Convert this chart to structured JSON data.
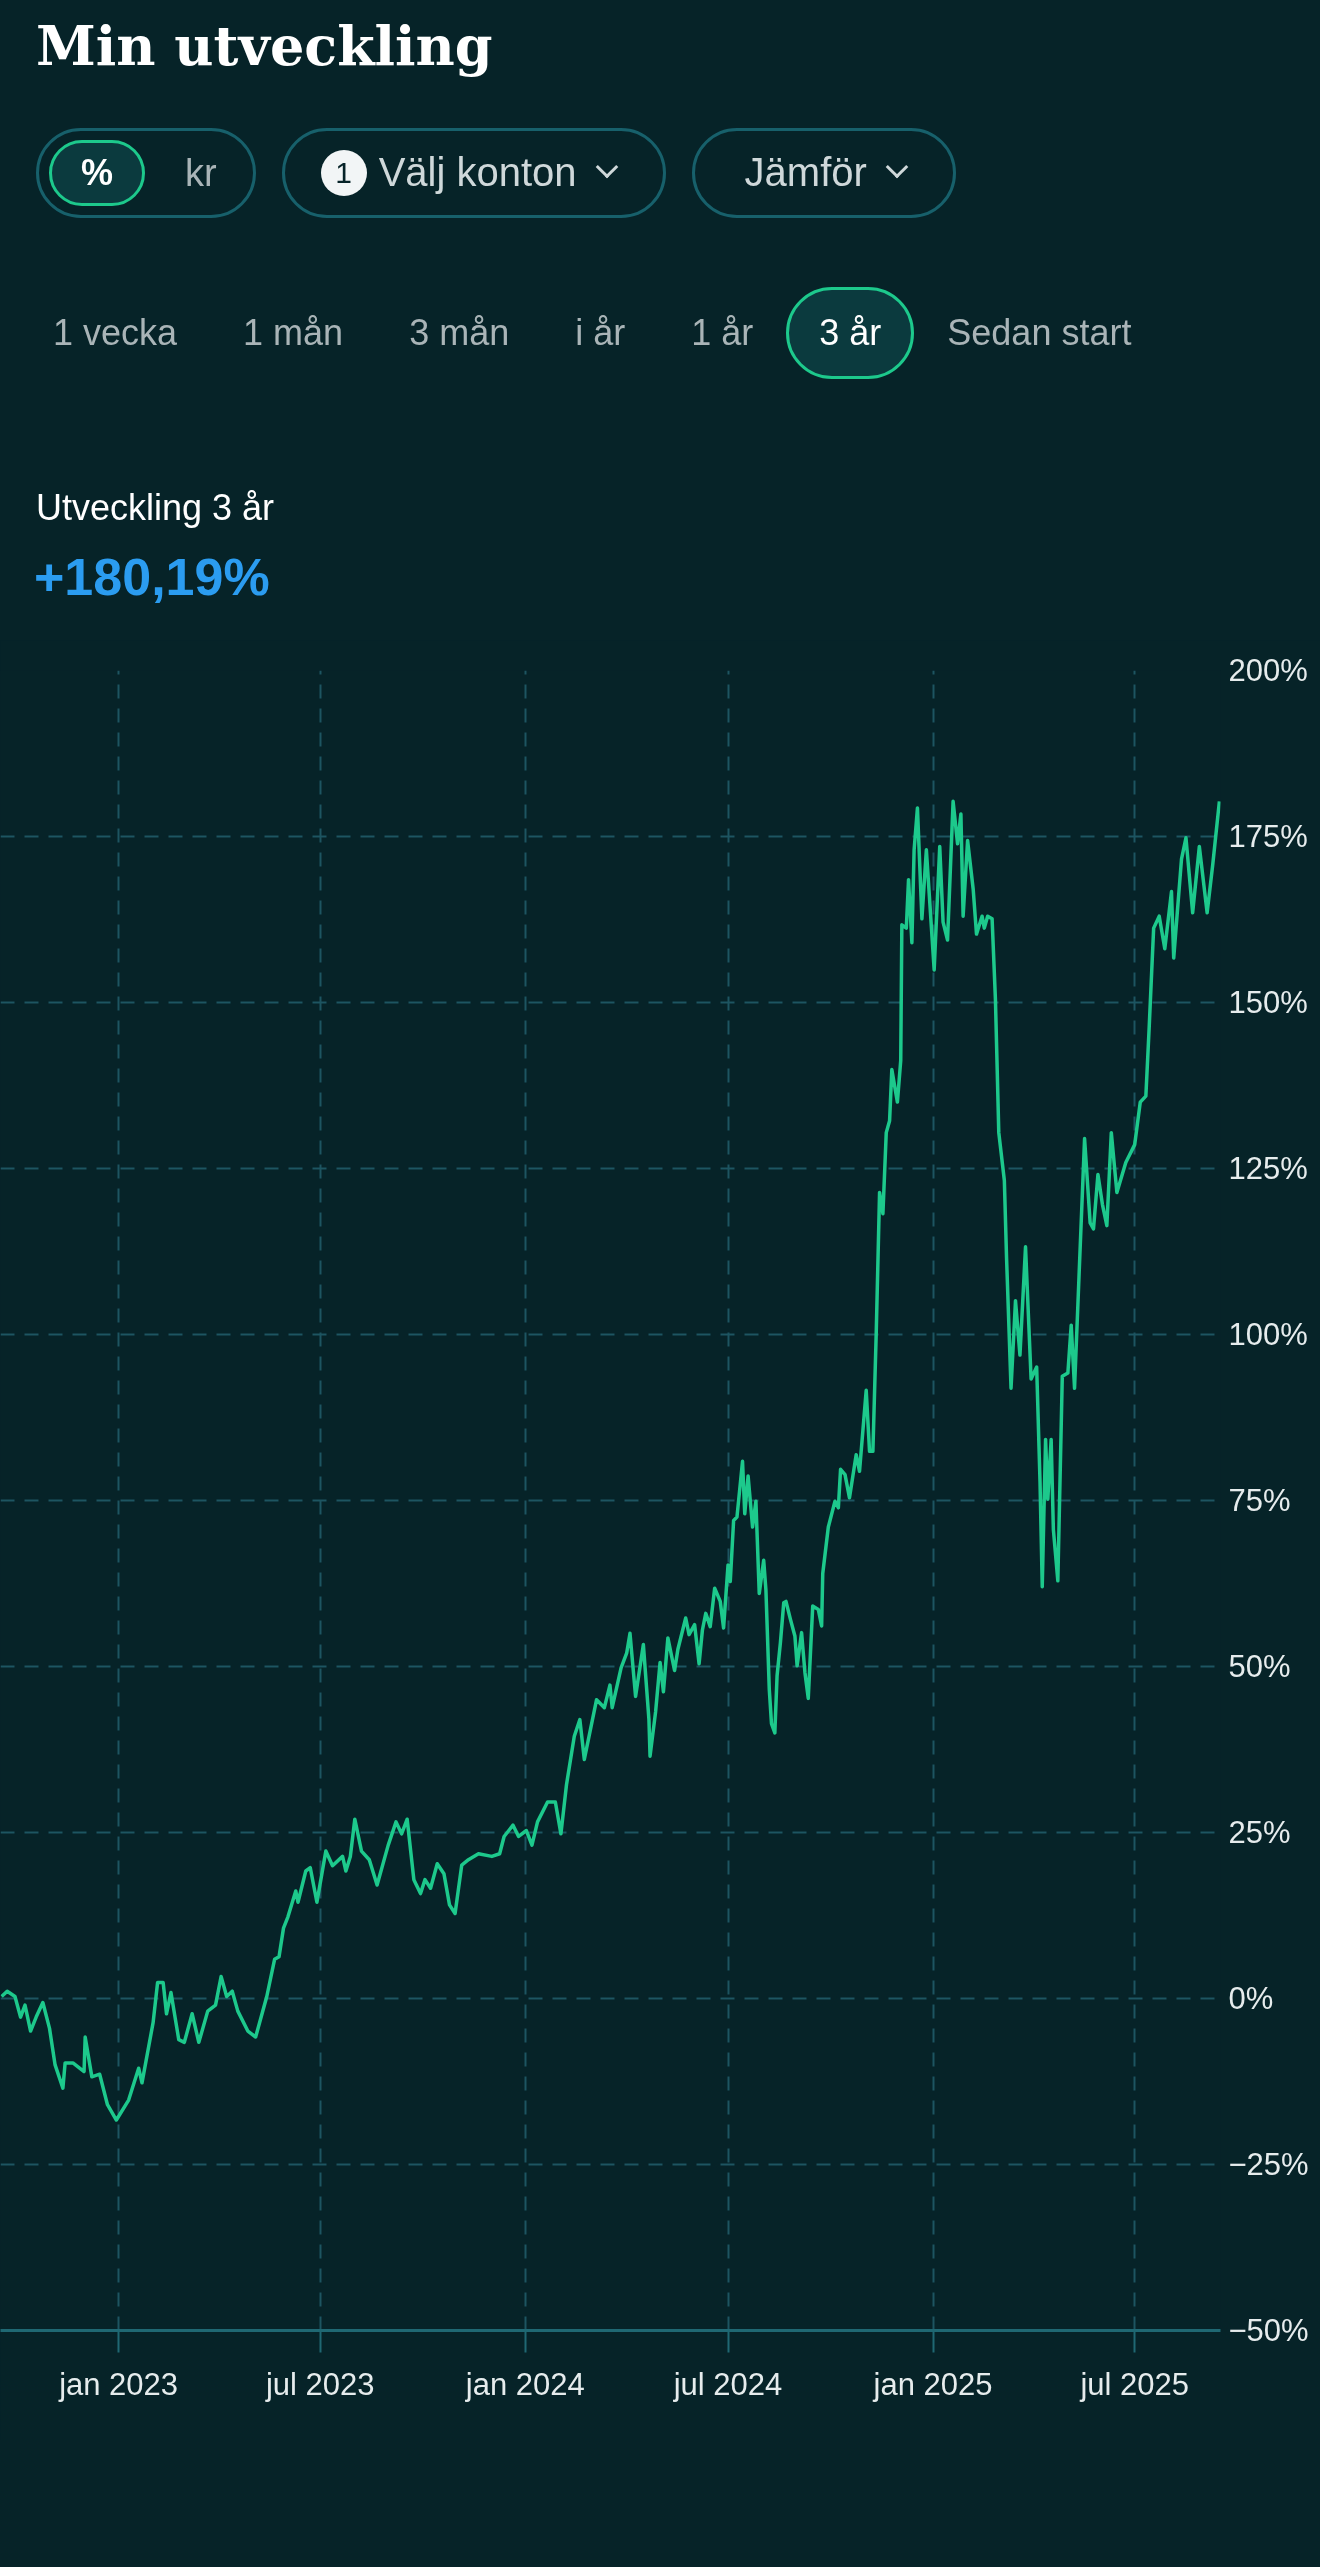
{
  "chart_data": {
    "type": "line",
    "title": "Min utveckling",
    "subtitle": "Utveckling 3 år",
    "annotations": [
      "+180,19%",
      "%",
      "kr",
      "1",
      "Välj konton",
      "Jämför",
      "1 vecka",
      "1 mån",
      "3 mån",
      "i år",
      "1 år",
      "3 år",
      "Sedan start"
    ],
    "x": [
      "2022-09-18",
      "2022-09-23",
      "2022-09-30",
      "2022-10-05",
      "2022-10-09",
      "2022-10-14",
      "2022-10-19",
      "2022-10-25",
      "2022-10-31",
      "2022-11-05",
      "2022-11-12",
      "2022-11-14",
      "2022-11-21",
      "2022-12-01",
      "2022-12-02",
      "2022-12-08",
      "2022-12-15",
      "2022-12-22",
      "2022-12-30",
      "2023-01-10",
      "2023-01-19",
      "2023-01-22",
      "2023-02-01",
      "2023-02-05",
      "2023-02-10",
      "2023-02-13",
      "2023-02-17",
      "2023-02-24",
      "2023-03-01",
      "2023-03-08",
      "2023-03-14",
      "2023-03-22",
      "2023-03-29",
      "2023-04-03",
      "2023-04-08",
      "2023-04-13",
      "2023-04-18",
      "2023-04-27",
      "2023-05-04",
      "2023-05-14",
      "2023-05-21",
      "2023-05-25",
      "2023-05-29",
      "2023-06-02",
      "2023-06-09",
      "2023-06-11",
      "2023-06-18",
      "2023-06-22",
      "2023-06-28",
      "2023-07-06",
      "2023-07-12",
      "2023-07-21",
      "2023-07-24",
      "2023-07-28",
      "2023-08-01",
      "2023-08-07",
      "2023-08-14",
      "2023-08-21",
      "2023-08-31",
      "2023-09-07",
      "2023-09-12",
      "2023-09-17",
      "2023-09-23",
      "2023-09-29",
      "2023-10-03",
      "2023-10-08",
      "2023-10-14",
      "2023-10-20",
      "2023-10-25",
      "2023-10-30",
      "2023-11-05",
      "2023-11-11",
      "2023-11-20",
      "2023-12-02",
      "2023-12-09",
      "2023-12-13",
      "2023-12-21",
      "2023-12-26",
      "2024-01-02",
      "2024-01-07",
      "2024-01-12",
      "2024-01-21",
      "2024-01-28",
      "2024-02-02",
      "2024-02-07",
      "2024-02-14",
      "2024-02-19",
      "2024-02-23",
      "2024-03-05",
      "2024-03-12",
      "2024-03-17",
      "2024-03-19",
      "2024-03-27",
      "2024-04-01",
      "2024-04-04",
      "2024-04-09",
      "2024-04-16",
      "2024-04-21",
      "2024-04-22",
      "2024-04-27",
      "2024-05-01",
      "2024-05-04",
      "2024-05-08",
      "2024-05-14",
      "2024-05-17",
      "2024-05-24",
      "2024-05-27",
      "2024-06-01",
      "2024-06-05",
      "2024-06-08",
      "2024-06-11",
      "2024-06-15",
      "2024-06-19",
      "2024-06-24",
      "2024-06-27",
      "2024-07-01",
      "2024-07-03",
      "2024-07-06",
      "2024-07-09",
      "2024-07-14",
      "2024-07-16",
      "2024-07-19",
      "2024-07-23",
      "2024-07-26",
      "2024-07-29",
      "2024-08-02",
      "2024-08-04",
      "2024-08-07",
      "2024-08-09",
      "2024-08-12",
      "2024-08-14",
      "2024-08-17",
      "2024-08-20",
      "2024-08-22",
      "2024-08-26",
      "2024-08-30",
      "2024-09-01",
      "2024-09-05",
      "2024-09-08",
      "2024-09-11",
      "2024-09-15",
      "2024-09-20",
      "2024-09-23",
      "2024-09-24",
      "2024-09-29",
      "2024-10-05",
      "2024-10-08",
      "2024-10-10",
      "2024-10-14",
      "2024-10-18",
      "2024-10-24",
      "2024-10-27",
      "2024-11-02",
      "2024-11-05",
      "2024-11-08",
      "2024-11-11",
      "2024-11-14",
      "2024-11-17",
      "2024-11-20",
      "2024-11-23",
      "2024-11-25",
      "2024-11-30",
      "2024-12-03",
      "2024-12-04",
      "2024-12-08",
      "2024-12-10",
      "2024-12-13",
      "2024-12-15",
      "2024-12-18",
      "2024-12-22",
      "2024-12-26",
      "2025-01-02",
      "2025-01-07",
      "2025-01-10",
      "2025-01-14",
      "2025-01-19",
      "2025-01-23",
      "2025-01-26",
      "2025-01-28",
      "2025-02-01",
      "2025-02-06",
      "2025-02-09",
      "2025-02-14",
      "2025-02-16",
      "2025-02-19",
      "2025-02-23",
      "2025-02-26",
      "2025-03-01",
      "2025-03-06",
      "2025-03-08",
      "2025-03-12",
      "2025-03-16",
      "2025-03-20",
      "2025-03-25",
      "2025-03-30",
      "2025-04-04",
      "2025-04-07",
      "2025-04-09",
      "2025-04-12",
      "2025-04-14",
      "2025-04-17",
      "2025-04-19",
      "2025-04-23",
      "2025-04-27",
      "2025-05-02",
      "2025-05-05",
      "2025-05-08",
      "2025-05-12",
      "2025-05-17",
      "2025-05-22",
      "2025-05-25",
      "2025-05-29",
      "2025-06-02",
      "2025-06-06",
      "2025-06-10",
      "2025-06-15",
      "2025-06-23",
      "2025-07-01",
      "2025-07-06",
      "2025-07-11",
      "2025-07-14",
      "2025-07-18",
      "2025-07-23",
      "2025-07-28",
      "2025-08-03",
      "2025-08-05",
      "2025-08-12",
      "2025-08-16",
      "2025-08-22",
      "2025-08-28",
      "2025-09-04",
      "2025-09-09",
      "2025-09-15"
    ],
    "series": [
      {
        "color": "#1dc98c",
        "values": [
          0.3,
          1.1,
          0.3,
          -2.8,
          -1,
          -4.9,
          -2.8,
          -0.6,
          -4.5,
          -10,
          -13.5,
          -9.7,
          -9.7,
          -11,
          -5.8,
          -11.8,
          -11.4,
          -16,
          -18.3,
          -15.3,
          -10.5,
          -12.7,
          -3.6,
          2.4,
          2.4,
          -2.3,
          0.9,
          -6.2,
          -6.6,
          -2.3,
          -6.6,
          -1.9,
          -1,
          3.3,
          0.3,
          1.1,
          -1.9,
          -4.9,
          -5.8,
          0.3,
          5.9,
          6.3,
          10.6,
          12.3,
          16.2,
          14.5,
          19.2,
          19.7,
          14.5,
          22.2,
          20,
          21.4,
          19.2,
          21.4,
          27,
          22.2,
          20.9,
          17.1,
          23.1,
          26.6,
          24.8,
          27,
          17.9,
          15.8,
          17.9,
          16.6,
          20.3,
          18.8,
          14.1,
          12.8,
          20.1,
          20.9,
          21.8,
          21.4,
          21.8,
          24.4,
          26.1,
          24.4,
          25.3,
          23.1,
          26.6,
          29.6,
          29.6,
          24.8,
          32.2,
          39.5,
          42,
          36,
          45,
          43.8,
          47.2,
          43.8,
          49.8,
          52,
          55,
          45.5,
          53.3,
          42,
          36.5,
          43.2,
          50.6,
          46.2,
          54.3,
          49.4,
          52.6,
          57.3,
          54.8,
          56.3,
          50.4,
          55.5,
          58,
          56,
          61.8,
          59.8,
          55.8,
          65.3,
          62.8,
          72,
          72.5,
          80.9,
          73,
          78.7,
          71,
          74.9,
          61,
          66,
          61.5,
          46.6,
          41.4,
          40,
          48.6,
          53.6,
          59.6,
          59.8,
          57.1,
          54.6,
          50.1,
          55.1,
          49.1,
          45.2,
          59.1,
          58.6,
          56.1,
          64,
          71,
          74.9,
          73.9,
          79.7,
          78.9,
          75.4,
          81.9,
          79.4,
          91.6,
          82.4,
          82.4,
          100.2,
          121.4,
          118.2,
          130.4,
          132.2,
          139.9,
          135,
          141.3,
          161.7,
          161.2,
          168.5,
          159,
          173,
          179.3,
          162.6,
          173,
          154.9,
          173.5,
          162.1,
          159.4,
          180.3,
          173.9,
          178.4,
          163,
          174.4,
          167.1,
          160.3,
          163,
          161.2,
          163,
          162.6,
          150.4,
          130.4,
          123.2,
          111.4,
          91.9,
          105.1,
          96.9,
          113.2,
          93.3,
          95.1,
          77.9,
          62,
          84.2,
          75.2,
          84.2,
          70.6,
          62.9,
          93.7,
          94.2,
          101.4,
          91.9,
          108.7,
          129.5,
          116.8,
          115.9,
          124.1,
          119.6,
          116.4,
          130.4,
          121.4,
          125.9,
          128.6,
          135,
          135.9,
          146.3,
          161.2,
          163,
          158.1,
          166.7,
          156.7,
          171.6,
          174.8,
          163.5,
          173.5,
          163.5,
          170.7,
          180.3
        ]
      }
    ],
    "xlim": [
      "2022-09-17",
      "2025-09-16"
    ],
    "xticks": [
      {
        "value": "2023-01-01",
        "label": "jan 2023"
      },
      {
        "value": "2023-07-01",
        "label": "jul 2023"
      },
      {
        "value": "2024-01-01",
        "label": "jan 2024"
      },
      {
        "value": "2024-07-01",
        "label": "jul 2024"
      },
      {
        "value": "2025-01-01",
        "label": "jan 2025"
      },
      {
        "value": "2025-07-01",
        "label": "jul 2025"
      }
    ],
    "ylim": [
      -50,
      200
    ],
    "yticks": [
      {
        "value": 200,
        "label": "200%"
      },
      {
        "value": 175,
        "label": "175%"
      },
      {
        "value": 150,
        "label": "150%"
      },
      {
        "value": 125,
        "label": "125%"
      },
      {
        "value": 100,
        "label": "100%"
      },
      {
        "value": 75,
        "label": "75%"
      },
      {
        "value": 50,
        "label": "50%"
      },
      {
        "value": 25,
        "label": "25%"
      },
      {
        "value": 0,
        "label": "0%"
      },
      {
        "value": -25,
        "label": "−25%"
      },
      {
        "value": -50,
        "label": "−50%"
      }
    ],
    "grid": true
  }
}
